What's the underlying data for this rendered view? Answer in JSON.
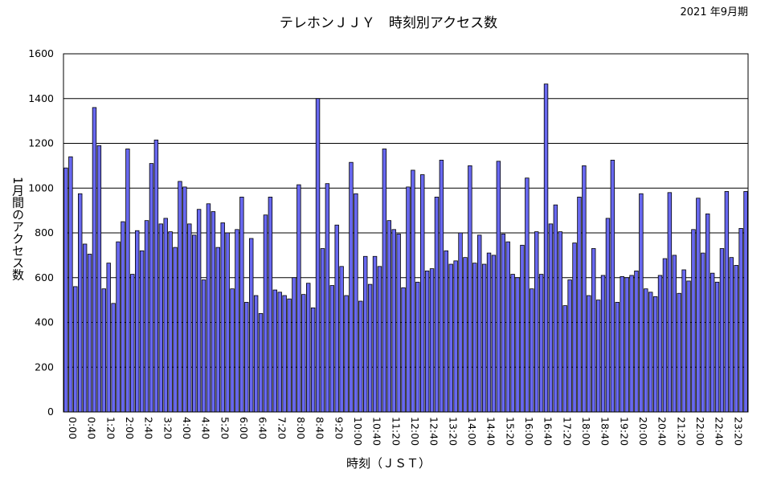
{
  "chart_data": {
    "type": "bar",
    "title": "テレホンＪＪＹ　時刻別アクセス数",
    "subtitle": "2021 年9月期",
    "xlabel": "時刻（ＪＳＴ）",
    "ylabel": "1月間のアクセス数",
    "ylim": [
      0,
      1600
    ],
    "yticks": [
      0,
      200,
      400,
      600,
      800,
      1000,
      1200,
      1400,
      1600
    ],
    "xtick_labels": [
      "0:00",
      "0:40",
      "1:20",
      "2:00",
      "2:40",
      "3:20",
      "4:00",
      "4:40",
      "5:20",
      "6:00",
      "6:40",
      "7:20",
      "8:00",
      "8:40",
      "9:20",
      "10:00",
      "10:40",
      "11:20",
      "12:00",
      "12:40",
      "13:20",
      "14:00",
      "14:40",
      "15:20",
      "16:00",
      "16:40",
      "17:20",
      "18:00",
      "18:40",
      "19:20",
      "20:00",
      "20:40",
      "21:20",
      "22:00",
      "22:40",
      "23:20"
    ],
    "xtick_every": 4,
    "grid": true,
    "bar_color": "#6868f0",
    "values": [
      1090,
      1140,
      560,
      975,
      750,
      705,
      1360,
      1190,
      550,
      665,
      485,
      760,
      850,
      1175,
      615,
      810,
      720,
      855,
      1110,
      1215,
      840,
      865,
      805,
      735,
      1030,
      1005,
      840,
      790,
      905,
      590,
      930,
      895,
      735,
      845,
      800,
      550,
      815,
      960,
      490,
      775,
      520,
      440,
      880,
      960,
      545,
      535,
      520,
      505,
      600,
      1015,
      525,
      575,
      465,
      1400,
      730,
      1020,
      565,
      835,
      650,
      520,
      1115,
      975,
      495,
      695,
      570,
      695,
      650,
      1175,
      855,
      815,
      795,
      555,
      1005,
      1080,
      580,
      1060,
      630,
      640,
      960,
      1125,
      720,
      660,
      675,
      800,
      690,
      1100,
      665,
      790,
      660,
      710,
      700,
      1120,
      795,
      760,
      615,
      600,
      745,
      1045,
      550,
      805,
      615,
      1465,
      840,
      925,
      805,
      475,
      590,
      755,
      960,
      1100,
      520,
      730,
      500,
      610,
      865,
      1125,
      490,
      605,
      600,
      610,
      630,
      975,
      550,
      535,
      515,
      610,
      685,
      980,
      700,
      530,
      635,
      585,
      815,
      955,
      710,
      885,
      620,
      580,
      730,
      985,
      690,
      655,
      820,
      985
    ]
  }
}
